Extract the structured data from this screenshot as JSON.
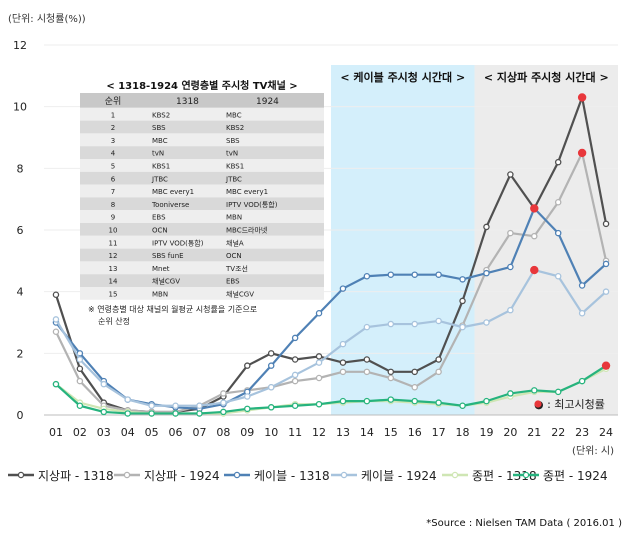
{
  "chart_data": {
    "type": "line",
    "ylabel": "(단위: 시청률(%))",
    "xunit": "(단위: 시)",
    "ylim": [
      0,
      12
    ],
    "yticks": [
      0,
      2,
      4,
      6,
      8,
      10,
      12
    ],
    "categories": [
      "01",
      "02",
      "03",
      "04",
      "05",
      "06",
      "07",
      "08",
      "09",
      "10",
      "11",
      "12",
      "13",
      "14",
      "15",
      "16",
      "17",
      "18",
      "19",
      "20",
      "21",
      "22",
      "23",
      "24"
    ],
    "bands": [
      {
        "label": "< 케이블 주시청 시간대 >",
        "from": "13",
        "to": "18",
        "color": "#d4effb"
      },
      {
        "label": "< 지상파 주시청 시간대 >",
        "from": "19",
        "to": "24",
        "color": "#ececec"
      }
    ],
    "series": [
      {
        "name": "지상파 - 1318",
        "color": "#505050",
        "values": [
          3.9,
          1.5,
          0.4,
          0.15,
          0.1,
          0.1,
          0.2,
          0.6,
          1.6,
          2.0,
          1.8,
          1.9,
          1.7,
          1.8,
          1.4,
          1.4,
          1.8,
          3.7,
          6.1,
          7.8,
          6.7,
          8.2,
          10.3,
          6.2
        ]
      },
      {
        "name": "지상파 - 1924",
        "color": "#b3b3b3",
        "values": [
          2.7,
          1.1,
          0.3,
          0.15,
          0.1,
          0.1,
          0.3,
          0.7,
          0.8,
          0.9,
          1.1,
          1.2,
          1.4,
          1.4,
          1.2,
          0.9,
          1.4,
          2.9,
          4.7,
          5.9,
          5.8,
          6.9,
          8.5,
          5.0
        ]
      },
      {
        "name": "케이블 - 1318",
        "color": "#4f81b5",
        "values": [
          3.0,
          2.0,
          1.1,
          0.5,
          0.35,
          0.25,
          0.2,
          0.35,
          0.75,
          1.6,
          2.5,
          3.3,
          4.1,
          4.5,
          4.55,
          4.55,
          4.55,
          4.4,
          4.6,
          4.8,
          6.7,
          5.9,
          4.2,
          4.9
        ]
      },
      {
        "name": "케이블 - 1924",
        "color": "#a7c3dd",
        "values": [
          3.1,
          1.8,
          1.0,
          0.5,
          0.3,
          0.3,
          0.3,
          0.4,
          0.6,
          0.9,
          1.3,
          1.7,
          2.3,
          2.85,
          2.95,
          2.95,
          3.05,
          2.85,
          3.0,
          3.4,
          4.7,
          4.5,
          3.3,
          4.0
        ]
      },
      {
        "name": "종편 - 1318",
        "color": "#cfe6b4",
        "values": [
          1.0,
          0.4,
          0.2,
          0.1,
          0.05,
          0.05,
          0.05,
          0.05,
          0.15,
          0.25,
          0.35,
          0.35,
          0.4,
          0.45,
          0.45,
          0.4,
          0.35,
          0.3,
          0.4,
          0.6,
          0.75,
          0.75,
          1.1,
          1.5
        ]
      },
      {
        "name": "종편 - 1924",
        "color": "#26b37e",
        "values": [
          1.0,
          0.3,
          0.1,
          0.05,
          0.05,
          0.05,
          0.05,
          0.1,
          0.2,
          0.25,
          0.3,
          0.35,
          0.45,
          0.45,
          0.5,
          0.45,
          0.4,
          0.3,
          0.45,
          0.7,
          0.8,
          0.75,
          1.1,
          1.6
        ]
      }
    ],
    "peaks": [
      {
        "x": "23",
        "y": 10.3
      },
      {
        "x": "23",
        "y": 8.5
      },
      {
        "x": "21",
        "y": 6.7
      },
      {
        "x": "21",
        "y": 4.7
      },
      {
        "x": "24",
        "y": 1.6
      }
    ],
    "peak_legend": "● : 최고시청률",
    "peak_color": "#e8373b",
    "source": "*Source : Nielsen TAM Data ( 2016.01 )",
    "rank_table": {
      "title": "< 1318-1924 연령층별 주시청 TV채널 >",
      "headers": [
        "순위",
        "1318",
        "1924"
      ],
      "rows": [
        [
          "1",
          "KBS2",
          "MBC"
        ],
        [
          "2",
          "SBS",
          "KBS2"
        ],
        [
          "3",
          "MBC",
          "SBS"
        ],
        [
          "4",
          "tvN",
          "tvN"
        ],
        [
          "5",
          "KBS1",
          "KBS1"
        ],
        [
          "6",
          "JTBC",
          "JTBC"
        ],
        [
          "7",
          "MBC every1",
          "MBC every1"
        ],
        [
          "8",
          "Tooniverse",
          "IPTV VOD(통합)"
        ],
        [
          "9",
          "EBS",
          "MBN"
        ],
        [
          "10",
          "OCN",
          "MBC드라마넷"
        ],
        [
          "11",
          "IPTV VOD(통합)",
          "채널A"
        ],
        [
          "12",
          "SBS funE",
          "OCN"
        ],
        [
          "13",
          "Mnet",
          "TV조선"
        ],
        [
          "14",
          "채널CGV",
          "EBS"
        ],
        [
          "15",
          "MBN",
          "채널CGV"
        ]
      ],
      "note_line1": "※ 연령층별 대상 채널의 월평균 시청률을 기준으로",
      "note_line2": "순위 산정"
    }
  }
}
